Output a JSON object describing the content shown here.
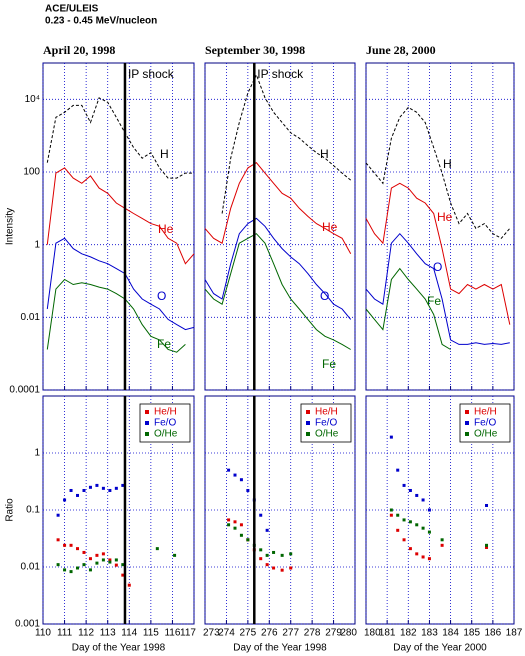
{
  "header": {
    "title": "ACE/ULEIS",
    "subtitle": "0.23 - 0.45 MeV/nucleon"
  },
  "chart_data": [
    {
      "type": "line",
      "title": "April 20, 1998",
      "ylabel": "Intensity",
      "log_y": true,
      "grid": true,
      "xlim": [
        110,
        117
      ],
      "xticks": [
        110,
        111,
        112,
        113,
        114,
        115,
        116,
        117
      ],
      "ylim": [
        0.0001,
        100000
      ],
      "yticks": [
        0.0001,
        0.01,
        1,
        100,
        {
          "value": 10000,
          "label": "10⁴"
        }
      ],
      "shock": {
        "x": 113.8,
        "label": "IP shock"
      },
      "x": [
        110.2,
        110.6,
        111.0,
        111.4,
        111.8,
        112.2,
        112.6,
        113.0,
        113.4,
        113.8,
        114.2,
        114.6,
        115.0,
        115.4,
        115.8,
        116.2,
        116.6,
        117.0
      ],
      "series": [
        {
          "name": "H",
          "color": "#000000",
          "dashed": true,
          "values": [
            180,
            3200,
            4400,
            6800,
            6800,
            2300,
            11000,
            8300,
            3200,
            1200,
            470,
            240,
            340,
            130,
            68,
            68,
            93,
            93
          ]
        },
        {
          "name": "He",
          "color": "#dd0000",
          "values": [
            1,
            93,
            130,
            68,
            49,
            78,
            36,
            26,
            14,
            10,
            7.2,
            5.3,
            3.8,
            3.2,
            1.5,
            1.1,
            0.3,
            0.56
          ]
        },
        {
          "name": "O",
          "color": "#0000cc",
          "values": [
            0.017,
            1.1,
            1.5,
            0.78,
            0.56,
            0.46,
            0.36,
            0.3,
            0.22,
            0.16,
            0.06,
            0.032,
            0.023,
            0.017,
            0.0088,
            0.0063,
            0.0046,
            0.0053
          ]
        },
        {
          "name": "Fe",
          "color": "#006600",
          "values": [
            0.0013,
            0.06,
            0.11,
            0.08,
            0.09,
            0.08,
            0.068,
            0.06,
            0.045,
            0.032,
            0.017,
            0.0063,
            0.003,
            0.0024,
            0.0013,
            0.0011,
            0.0018,
            null
          ]
        }
      ]
    },
    {
      "type": "line",
      "title": "September 30, 1998",
      "log_y": true,
      "grid": true,
      "xlim": [
        273,
        280
      ],
      "xticks": [
        273,
        274,
        275,
        276,
        277,
        278,
        279,
        280
      ],
      "ylim": [
        0.0001,
        100000
      ],
      "yticks": [
        0.0001,
        0.01,
        1,
        100,
        10000
      ],
      "shock": {
        "x": 275.3,
        "label": "IP shock"
      },
      "x": [
        273.0,
        273.4,
        273.8,
        274.2,
        274.6,
        275.0,
        275.4,
        275.8,
        276.2,
        276.6,
        277.0,
        277.4,
        277.8,
        278.2,
        278.6,
        279.0,
        279.4,
        279.8
      ],
      "series": [
        {
          "name": "H",
          "color": "#000000",
          "dashed": true,
          "values": [
            null,
            null,
            7.2,
            240,
            2300,
            15000,
            47000,
            11000,
            4400,
            2300,
            1200,
            850,
            530,
            340,
            240,
            150,
            93,
            60
          ]
        },
        {
          "name": "He",
          "color": "#dd0000",
          "values": [
            2.8,
            1.5,
            1.1,
            10,
            49,
            130,
            180,
            93,
            49,
            26,
            19,
            10,
            6,
            3.8,
            2.8,
            2,
            1.5,
            0.56
          ]
        },
        {
          "name": "O",
          "color": "#0000cc",
          "values": [
            0.11,
            0.045,
            0.032,
            0.3,
            2,
            3.8,
            5.3,
            3.2,
            1.5,
            0.78,
            0.46,
            0.3,
            0.16,
            0.08,
            0.045,
            0.023,
            0.017,
            0.0088
          ]
        },
        {
          "name": "Fe",
          "color": "#006600",
          "values": [
            0.06,
            0.032,
            0.023,
            0.16,
            1.1,
            1.5,
            2,
            1.1,
            0.3,
            0.08,
            0.032,
            0.017,
            0.0088,
            0.0046,
            0.003,
            0.0024,
            0.0018,
            0.0013
          ]
        }
      ]
    },
    {
      "type": "line",
      "title": "June 28, 2000",
      "log_y": true,
      "grid": true,
      "xlim": [
        180,
        187
      ],
      "xticks": [
        180,
        181,
        182,
        183,
        184,
        185,
        186,
        187
      ],
      "ylim": [
        0.0001,
        100000
      ],
      "yticks": [
        0.0001,
        0.01,
        1,
        100,
        10000
      ],
      "x": [
        180.0,
        180.4,
        180.8,
        181.2,
        181.6,
        182.0,
        182.4,
        182.8,
        183.2,
        183.6,
        184.0,
        184.4,
        184.8,
        185.2,
        185.6,
        186.0,
        186.4,
        186.8
      ],
      "series": [
        {
          "name": "H",
          "color": "#000000",
          "dashed": true,
          "values": [
            178,
            93,
            49,
            850,
            3200,
            6000,
            4400,
            2300,
            470,
            93,
            14,
            3.8,
            7.2,
            2.8,
            3.8,
            2,
            1.5,
            2.8
          ]
        },
        {
          "name": "He",
          "color": "#dd0000",
          "values": [
            5.3,
            2,
            1.1,
            36,
            49,
            36,
            19,
            14,
            7.2,
            0.78,
            0.06,
            0.045,
            0.08,
            0.06,
            0.08,
            0.06,
            0.08,
            0.0063
          ]
        },
        {
          "name": "O",
          "color": "#0000cc",
          "values": [
            0.06,
            0.032,
            0.023,
            1.1,
            2,
            1.1,
            0.56,
            0.3,
            0.22,
            0.032,
            0.0024,
            0.0018,
            0.0018,
            0.002,
            0.0018,
            0.0019,
            0.0018,
            0.002
          ]
        },
        {
          "name": "Fe",
          "color": "#006600",
          "values": [
            0.017,
            0.0088,
            0.0046,
            0.11,
            0.22,
            0.11,
            0.06,
            0.032,
            0.012,
            0.0018,
            0.0013,
            null,
            null,
            null,
            null,
            null,
            null,
            null
          ]
        }
      ]
    },
    {
      "type": "scatter",
      "ylabel": "Ratio",
      "xlabel": "Day of the Year 1998",
      "log_y": true,
      "grid": true,
      "legend": "upper right",
      "xlim": [
        110,
        117
      ],
      "xticks": [
        110,
        111,
        112,
        113,
        114,
        115,
        116,
        117
      ],
      "ylim": [
        0.001,
        10
      ],
      "yticks": [
        0.001,
        0.01,
        0.1,
        1
      ],
      "shock_x": 113.8,
      "series": [
        {
          "name": "He/H",
          "color": "#dd0000",
          "x": [
            110.7,
            111.0,
            111.3,
            111.6,
            111.9,
            112.2,
            112.5,
            112.8,
            113.1,
            113.4,
            113.7,
            114.0
          ],
          "values": [
            0.03,
            0.024,
            0.024,
            0.021,
            0.018,
            0.014,
            0.016,
            0.017,
            0.0133,
            0.0108,
            0.0072,
            0.0048
          ]
        },
        {
          "name": "Fe/O",
          "color": "#0000cc",
          "x": [
            110.7,
            111.0,
            111.3,
            111.6,
            111.9,
            112.2,
            112.5,
            112.8,
            113.1,
            113.4,
            113.7
          ],
          "values": [
            0.081,
            0.15,
            0.22,
            0.18,
            0.22,
            0.25,
            0.27,
            0.24,
            0.22,
            0.24,
            0.27
          ]
        },
        {
          "name": "O/He",
          "color": "#006600",
          "x": [
            110.7,
            111.0,
            111.3,
            111.6,
            111.9,
            112.2,
            112.5,
            112.8,
            113.1,
            113.4,
            113.7,
            115.3,
            116.1
          ],
          "values": [
            0.011,
            0.0089,
            0.0083,
            0.0096,
            0.011,
            0.0089,
            0.0117,
            0.0133,
            0.0122,
            0.0133,
            0.011,
            0.021,
            0.016
          ]
        }
      ]
    },
    {
      "type": "scatter",
      "xlabel": "Day of the Year 1998",
      "log_y": true,
      "grid": true,
      "legend": "upper right",
      "xlim": [
        273,
        280
      ],
      "xticks": [
        273,
        274,
        275,
        276,
        277,
        278,
        279,
        280
      ],
      "ylim": [
        0.001,
        10
      ],
      "yticks": [
        0.001,
        0.01,
        0.1,
        1
      ],
      "shock_x": 275.3,
      "series": [
        {
          "name": "He/H",
          "color": "#dd0000",
          "x": [
            274.1,
            274.4,
            274.7,
            275.0,
            275.3,
            275.6,
            275.9,
            276.2,
            276.6,
            277.0
          ],
          "values": [
            0.067,
            0.062,
            0.055,
            0.03,
            0.02,
            0.014,
            0.011,
            0.0096,
            0.0088,
            0.0096
          ]
        },
        {
          "name": "Fe/O",
          "color": "#0000cc",
          "x": [
            274.1,
            274.4,
            274.7,
            275.0,
            275.3,
            275.6,
            275.9
          ],
          "values": [
            0.5,
            0.41,
            0.34,
            0.22,
            0.15,
            0.081,
            0.044
          ]
        },
        {
          "name": "O/He",
          "color": "#006600",
          "x": [
            274.1,
            274.4,
            274.7,
            275.0,
            275.3,
            275.6,
            275.9,
            276.2,
            276.6,
            277.0
          ],
          "values": [
            0.055,
            0.048,
            0.036,
            0.03,
            0.024,
            0.02,
            0.016,
            0.018,
            0.016,
            0.017
          ]
        }
      ]
    },
    {
      "type": "scatter",
      "xlabel": "Day of the Year 2000",
      "log_y": true,
      "grid": true,
      "legend": "upper right",
      "xlim": [
        180,
        187
      ],
      "xticks": [
        180,
        181,
        182,
        183,
        184,
        185,
        186,
        187
      ],
      "ylim": [
        0.001,
        10
      ],
      "yticks": [
        0.001,
        0.01,
        0.1,
        1
      ],
      "series": [
        {
          "name": "He/H",
          "color": "#dd0000",
          "x": [
            181.2,
            181.5,
            181.8,
            182.1,
            182.4,
            182.7,
            183.0,
            183.6,
            185.7
          ],
          "values": [
            0.081,
            0.044,
            0.03,
            0.021,
            0.017,
            0.015,
            0.014,
            0.024,
            0.022
          ]
        },
        {
          "name": "Fe/O",
          "color": "#0000cc",
          "x": [
            181.2,
            181.5,
            181.8,
            182.1,
            182.4,
            182.7,
            183.0,
            185.7
          ],
          "values": [
            1.9,
            0.5,
            0.27,
            0.22,
            0.18,
            0.15,
            0.1,
            0.12
          ]
        },
        {
          "name": "O/He",
          "color": "#006600",
          "x": [
            181.2,
            181.5,
            181.8,
            182.1,
            182.4,
            182.7,
            183.0,
            183.6,
            185.7
          ],
          "values": [
            0.1,
            0.081,
            0.067,
            0.062,
            0.055,
            0.048,
            0.041,
            0.03,
            0.024
          ]
        }
      ]
    }
  ]
}
